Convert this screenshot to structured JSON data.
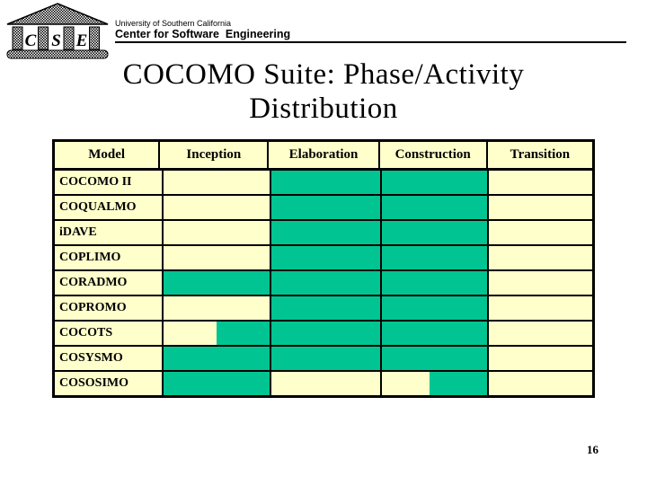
{
  "header": {
    "organization": "University of Southern California",
    "department": "Center for Software  Engineering"
  },
  "logo": {
    "letters": [
      "C",
      "S",
      "E"
    ]
  },
  "title": {
    "line1": "COCOMO Suite: Phase/Activity",
    "line2": "Distribution"
  },
  "page_number": "16",
  "colors": {
    "cell_background": "#FFFFCC",
    "phase_fill": "#00C592",
    "border": "#000000"
  },
  "chart_data": {
    "type": "table",
    "title": "COCOMO Suite: Phase/Activity Distribution",
    "columns": [
      "Model",
      "Inception",
      "Elaboration",
      "Construction",
      "Transition"
    ],
    "rows": [
      {
        "label": "COCOMO II",
        "cells": [
          null,
          [
            0,
            1
          ],
          [
            0,
            1
          ],
          null
        ]
      },
      {
        "label": "COQUALMO",
        "cells": [
          null,
          [
            0,
            1
          ],
          [
            0,
            1
          ],
          null
        ]
      },
      {
        "label": "iDAVE",
        "cells": [
          null,
          [
            0,
            1
          ],
          [
            0,
            1
          ],
          null
        ]
      },
      {
        "label": "COPLIMO",
        "cells": [
          null,
          [
            0,
            1
          ],
          [
            0,
            1
          ],
          null
        ]
      },
      {
        "label": "CORADMO",
        "cells": [
          [
            0,
            1
          ],
          [
            0,
            1
          ],
          [
            0,
            1
          ],
          null
        ]
      },
      {
        "label": "COPROMO",
        "cells": [
          null,
          [
            0,
            1
          ],
          [
            0,
            1
          ],
          null
        ]
      },
      {
        "label": "COCOTS",
        "cells": [
          [
            0.5,
            1
          ],
          [
            0,
            1
          ],
          [
            0,
            1
          ],
          null
        ]
      },
      {
        "label": "COSYSMO",
        "cells": [
          [
            0,
            1
          ],
          [
            0,
            1
          ],
          [
            0,
            1
          ],
          null
        ]
      },
      {
        "label": "COSOSIMO",
        "cells": [
          [
            0,
            1
          ],
          null,
          [
            0.46,
            1
          ],
          null
        ]
      }
    ]
  }
}
